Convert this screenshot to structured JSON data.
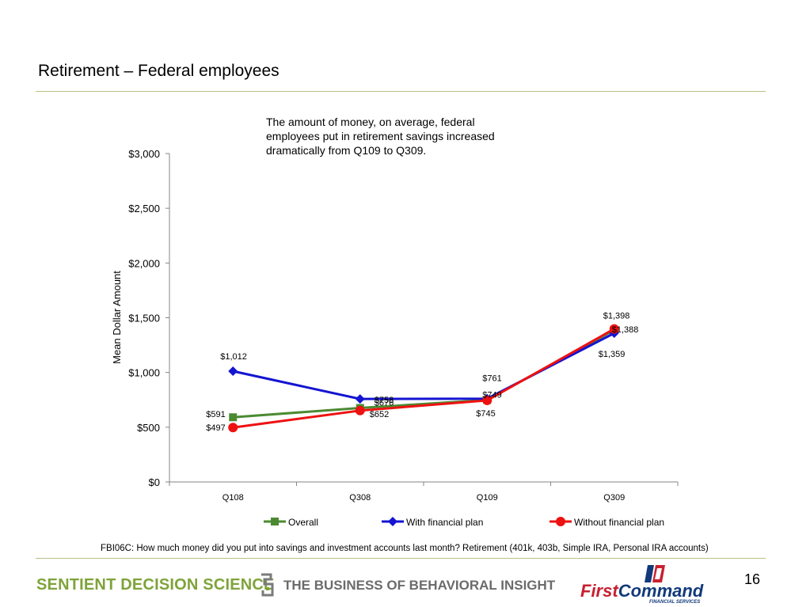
{
  "slide": {
    "title": "Retirement – Federal employees",
    "annotation": "The amount of money, on average, federal employees put in retirement savings increased dramatically from Q109 to Q309.",
    "footnote": "FBI06C: How much money did you put into savings and investment accounts last month? Retirement (401k, 403b, Simple IRA, Personal IRA accounts)",
    "page_number": "16",
    "logos": {
      "left": "SENTIENT DECISION SCIENCE",
      "tagline": "THE BUSINESS OF BEHAVIORAL INSIGHT",
      "right_first": "First",
      "right_command": "Command",
      "right_sub": "FINANCIAL SERVICES"
    }
  },
  "chart_data": {
    "type": "line",
    "ylabel": "Mean Dollar  Amount",
    "categories": [
      "Q108",
      "Q308",
      "Q109",
      "Q309"
    ],
    "ylim": [
      0,
      3000
    ],
    "yticks": [
      0,
      500,
      1000,
      1500,
      2000,
      2500,
      3000
    ],
    "ytick_labels": [
      "$0",
      "$500",
      "$1,000",
      "$1,500",
      "$2,000",
      "$2,500",
      "$3,000"
    ],
    "grid": false,
    "legend_position": "bottom",
    "series": [
      {
        "name": "Overall",
        "color": "#4c8a32",
        "marker": "square",
        "values": [
          591,
          676,
          749,
          1388
        ],
        "labels": [
          "$591",
          "$676",
          "$749",
          "$1,388"
        ]
      },
      {
        "name": "With financial plan",
        "color": "#1414d2",
        "marker": "diamond",
        "values": [
          1012,
          758,
          761,
          1359
        ],
        "labels": [
          "$1,012",
          "$758",
          "$761",
          "$1,359"
        ]
      },
      {
        "name": "Without financial plan",
        "color": "#ee1111",
        "marker": "circle",
        "values": [
          497,
          652,
          745,
          1398
        ],
        "labels": [
          "$497",
          "$652",
          "$745",
          "$1,398"
        ]
      }
    ]
  }
}
